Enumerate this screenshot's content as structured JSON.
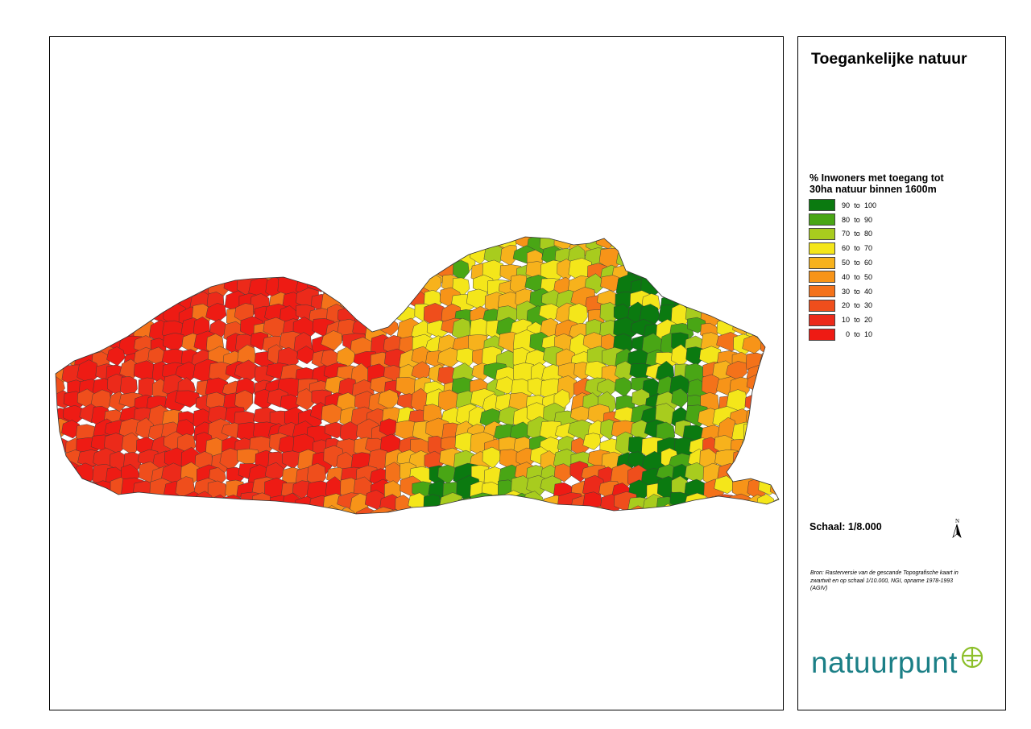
{
  "title": "Toegankelijke natuur",
  "legend": {
    "heading_line1": "% Inwoners met toegang tot",
    "heading_line2": "30ha natuur binnen 1600m",
    "items": [
      {
        "from": "90",
        "to": "to",
        "upto": "100",
        "color": "#0b7a10"
      },
      {
        "from": "80",
        "to": "to",
        "upto": "90",
        "color": "#49a615"
      },
      {
        "from": "70",
        "to": "to",
        "upto": "80",
        "color": "#a8cc1e"
      },
      {
        "from": "60",
        "to": "to",
        "upto": "70",
        "color": "#f4e61a"
      },
      {
        "from": "50",
        "to": "to",
        "upto": "60",
        "color": "#f7b21c"
      },
      {
        "from": "40",
        "to": "to",
        "upto": "50",
        "color": "#f79418"
      },
      {
        "from": "30",
        "to": "to",
        "upto": "40",
        "color": "#f4721a"
      },
      {
        "from": "20",
        "to": "to",
        "upto": "30",
        "color": "#ef4e1c"
      },
      {
        "from": "10",
        "to": "to",
        "upto": "20",
        "color": "#ec2a1a"
      },
      {
        "from": "0",
        "to": "to",
        "upto": "10",
        "color": "#ee1b14"
      }
    ]
  },
  "scale": "Schaal: 1/8.000",
  "north_label": "N",
  "source": "Bron: Rasterversie van de gescande Topografische kaart in zwartwit en op schaal 1/10.000, NGI, opname 1978-1993 (AGIV)",
  "logo": "natuurpunt",
  "map_icon": "choropleth-map-of-flanders"
}
